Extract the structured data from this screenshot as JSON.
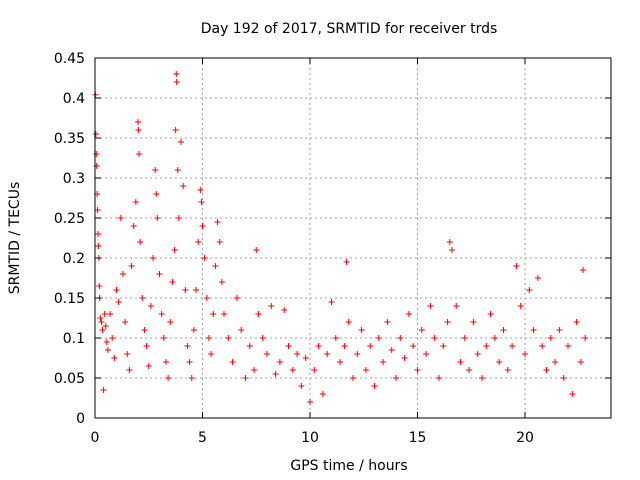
{
  "chart_data": {
    "type": "scatter",
    "title": "Day 192 of 2017, SRMTID for receiver trds",
    "xlabel": "GPS time / hours",
    "ylabel": "SRMTID / TECUs",
    "xlim": [
      0,
      24
    ],
    "ylim": [
      0,
      0.45
    ],
    "xticks": [
      0,
      5,
      10,
      15,
      20
    ],
    "xtick_labels": [
      "0",
      "5",
      "10",
      "15",
      "20"
    ],
    "yticks": [
      0,
      0.05,
      0.1,
      0.15,
      0.2,
      0.25,
      0.3,
      0.35,
      0.4,
      0.45
    ],
    "ytick_labels": [
      "0",
      "0.05",
      "0.1",
      "0.15",
      "0.2",
      "0.25",
      "0.3",
      "0.35",
      "0.4",
      "0.45"
    ],
    "grid": true,
    "marker": "+",
    "point_color": "#ff0000",
    "series": [
      {
        "values_note": "",
        "points": [
          [
            0.02,
            0.404
          ],
          [
            0.04,
            0.355
          ],
          [
            0.06,
            0.33
          ],
          [
            0.08,
            0.315
          ],
          [
            0.1,
            0.28
          ],
          [
            0.12,
            0.26
          ],
          [
            0.14,
            0.23
          ],
          [
            0.16,
            0.215
          ],
          [
            0.18,
            0.2
          ],
          [
            0.2,
            0.165
          ],
          [
            0.22,
            0.15
          ],
          [
            0.25,
            0.125
          ],
          [
            0.3,
            0.12
          ],
          [
            0.35,
            0.11
          ],
          [
            0.4,
            0.035
          ],
          [
            0.45,
            0.13
          ],
          [
            0.5,
            0.115
          ],
          [
            0.55,
            0.095
          ],
          [
            0.6,
            0.085
          ],
          [
            0.7,
            0.13
          ],
          [
            0.8,
            0.1
          ],
          [
            0.9,
            0.075
          ],
          [
            1.0,
            0.16
          ],
          [
            1.1,
            0.145
          ],
          [
            1.2,
            0.25
          ],
          [
            1.3,
            0.18
          ],
          [
            1.4,
            0.12
          ],
          [
            1.5,
            0.08
          ],
          [
            1.6,
            0.06
          ],
          [
            1.7,
            0.19
          ],
          [
            1.8,
            0.24
          ],
          [
            1.9,
            0.27
          ],
          [
            2.0,
            0.37
          ],
          [
            2.02,
            0.36
          ],
          [
            2.05,
            0.33
          ],
          [
            2.1,
            0.22
          ],
          [
            2.2,
            0.15
          ],
          [
            2.3,
            0.11
          ],
          [
            2.4,
            0.09
          ],
          [
            2.5,
            0.065
          ],
          [
            2.6,
            0.14
          ],
          [
            2.7,
            0.2
          ],
          [
            2.8,
            0.31
          ],
          [
            2.85,
            0.28
          ],
          [
            2.9,
            0.25
          ],
          [
            3.0,
            0.18
          ],
          [
            3.1,
            0.13
          ],
          [
            3.2,
            0.1
          ],
          [
            3.3,
            0.07
          ],
          [
            3.4,
            0.05
          ],
          [
            3.5,
            0.12
          ],
          [
            3.6,
            0.17
          ],
          [
            3.7,
            0.21
          ],
          [
            3.75,
            0.36
          ],
          [
            3.78,
            0.43
          ],
          [
            3.8,
            0.42
          ],
          [
            3.85,
            0.31
          ],
          [
            3.9,
            0.25
          ],
          [
            4.0,
            0.345
          ],
          [
            4.1,
            0.29
          ],
          [
            4.2,
            0.16
          ],
          [
            4.3,
            0.09
          ],
          [
            4.4,
            0.07
          ],
          [
            4.5,
            0.05
          ],
          [
            4.6,
            0.11
          ],
          [
            4.7,
            0.16
          ],
          [
            4.8,
            0.22
          ],
          [
            4.9,
            0.285
          ],
          [
            4.95,
            0.27
          ],
          [
            5.0,
            0.24
          ],
          [
            5.1,
            0.2
          ],
          [
            5.2,
            0.15
          ],
          [
            5.3,
            0.1
          ],
          [
            5.4,
            0.08
          ],
          [
            5.5,
            0.13
          ],
          [
            5.6,
            0.19
          ],
          [
            5.7,
            0.245
          ],
          [
            5.8,
            0.22
          ],
          [
            5.9,
            0.17
          ],
          [
            6.0,
            0.13
          ],
          [
            6.2,
            0.1
          ],
          [
            6.4,
            0.07
          ],
          [
            6.6,
            0.15
          ],
          [
            6.8,
            0.11
          ],
          [
            7.0,
            0.05
          ],
          [
            7.2,
            0.09
          ],
          [
            7.4,
            0.06
          ],
          [
            7.5,
            0.21
          ],
          [
            7.6,
            0.13
          ],
          [
            7.8,
            0.1
          ],
          [
            8.0,
            0.08
          ],
          [
            8.2,
            0.14
          ],
          [
            8.4,
            0.055
          ],
          [
            8.6,
            0.07
          ],
          [
            8.8,
            0.135
          ],
          [
            9.0,
            0.09
          ],
          [
            9.2,
            0.06
          ],
          [
            9.4,
            0.08
          ],
          [
            9.6,
            0.04
          ],
          [
            9.8,
            0.075
          ],
          [
            10.0,
            0.02
          ],
          [
            10.2,
            0.06
          ],
          [
            10.4,
            0.09
          ],
          [
            10.6,
            0.03
          ],
          [
            10.8,
            0.08
          ],
          [
            11.0,
            0.145
          ],
          [
            11.2,
            0.1
          ],
          [
            11.4,
            0.07
          ],
          [
            11.6,
            0.09
          ],
          [
            11.7,
            0.195
          ],
          [
            11.8,
            0.12
          ],
          [
            12.0,
            0.05
          ],
          [
            12.2,
            0.08
          ],
          [
            12.4,
            0.11
          ],
          [
            12.6,
            0.06
          ],
          [
            12.8,
            0.09
          ],
          [
            13.0,
            0.04
          ],
          [
            13.2,
            0.1
          ],
          [
            13.4,
            0.07
          ],
          [
            13.6,
            0.12
          ],
          [
            13.8,
            0.085
          ],
          [
            14.0,
            0.05
          ],
          [
            14.2,
            0.1
          ],
          [
            14.4,
            0.075
          ],
          [
            14.6,
            0.13
          ],
          [
            14.8,
            0.09
          ],
          [
            15.0,
            0.06
          ],
          [
            15.2,
            0.11
          ],
          [
            15.4,
            0.08
          ],
          [
            15.6,
            0.14
          ],
          [
            15.8,
            0.1
          ],
          [
            16.0,
            0.05
          ],
          [
            16.2,
            0.09
          ],
          [
            16.4,
            0.12
          ],
          [
            16.5,
            0.22
          ],
          [
            16.6,
            0.21
          ],
          [
            16.8,
            0.14
          ],
          [
            17.0,
            0.07
          ],
          [
            17.2,
            0.1
          ],
          [
            17.4,
            0.06
          ],
          [
            17.6,
            0.12
          ],
          [
            17.8,
            0.08
          ],
          [
            18.0,
            0.05
          ],
          [
            18.2,
            0.09
          ],
          [
            18.4,
            0.13
          ],
          [
            18.6,
            0.1
          ],
          [
            18.8,
            0.07
          ],
          [
            19.0,
            0.11
          ],
          [
            19.2,
            0.06
          ],
          [
            19.4,
            0.09
          ],
          [
            19.6,
            0.19
          ],
          [
            19.8,
            0.14
          ],
          [
            20.0,
            0.08
          ],
          [
            20.2,
            0.16
          ],
          [
            20.4,
            0.11
          ],
          [
            20.6,
            0.175
          ],
          [
            20.8,
            0.09
          ],
          [
            21.0,
            0.06
          ],
          [
            21.2,
            0.1
          ],
          [
            21.4,
            0.07
          ],
          [
            21.6,
            0.11
          ],
          [
            21.8,
            0.05
          ],
          [
            22.0,
            0.09
          ],
          [
            22.2,
            0.03
          ],
          [
            22.4,
            0.12
          ],
          [
            22.6,
            0.07
          ],
          [
            22.7,
            0.185
          ],
          [
            22.8,
            0.1
          ]
        ]
      }
    ]
  }
}
